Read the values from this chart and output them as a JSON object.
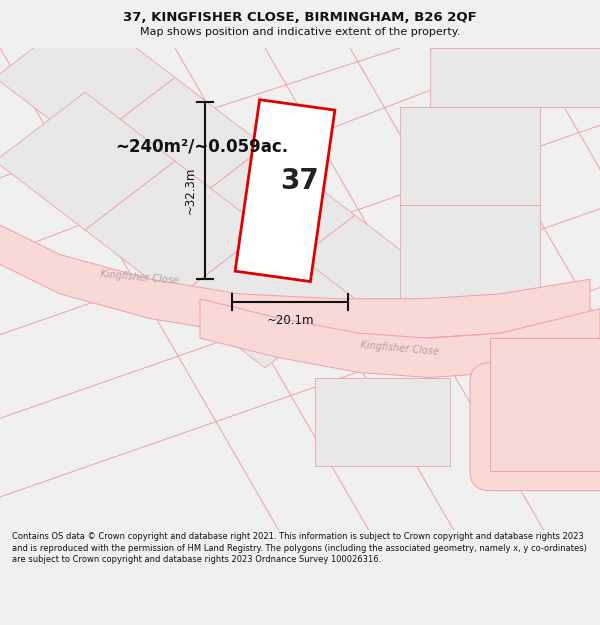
{
  "title": "37, KINGFISHER CLOSE, BIRMINGHAM, B26 2QF",
  "subtitle": "Map shows position and indicative extent of the property.",
  "footer": "Contains OS data © Crown copyright and database right 2021. This information is subject to Crown copyright and database rights 2023 and is reproduced with the permission of HM Land Registry. The polygons (including the associated geometry, namely x, y co-ordinates) are subject to Crown copyright and database rights 2023 Ordnance Survey 100026316.",
  "area_label": "~240m²/~0.059ac.",
  "width_label": "~20.1m",
  "height_label": "~32.3m",
  "property_number": "37",
  "bg_color": "#f0f0f0",
  "map_bg": "#ffffff",
  "road_color": "#f9d8d8",
  "building_color": "#e8e8e8",
  "property_color": "#ffffff",
  "property_edge_color": "#dd0000",
  "road_line_color": "#f0a0a0",
  "street_label_color": "#c0a0a0",
  "dim_line_color": "#111111",
  "text_color": "#111111"
}
